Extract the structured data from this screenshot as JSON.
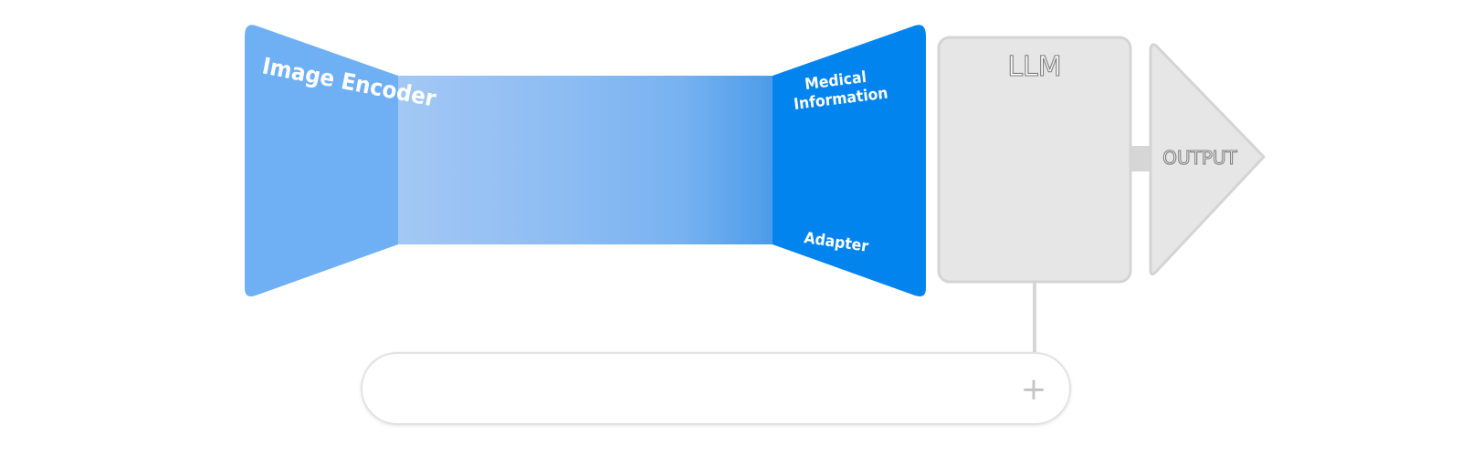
{
  "diagram": {
    "encoder": {
      "label": "Image Encoder"
    },
    "adapter": {
      "top_label_line1": "Medical",
      "top_label_line2": "Information",
      "bottom_label": "Adapter"
    },
    "llm": {
      "label": "LLM"
    },
    "output": {
      "label": "OUTPUT"
    },
    "prompt_bar": {
      "add_symbol": "+"
    },
    "colors": {
      "encoder_fill": "#6fb0f5",
      "adapter_fill": "#0284ee",
      "gradient_start": "#a3c8f4",
      "gradient_mid": "#8dbcf3",
      "gradient_end": "#4a9be9",
      "llm_fill": "#e6e6e6",
      "llm_border": "#d4d4d4",
      "connector": "#d6d6d6",
      "prompt_border": "#e2e2e2",
      "plus_color": "#c4c4c4"
    }
  }
}
